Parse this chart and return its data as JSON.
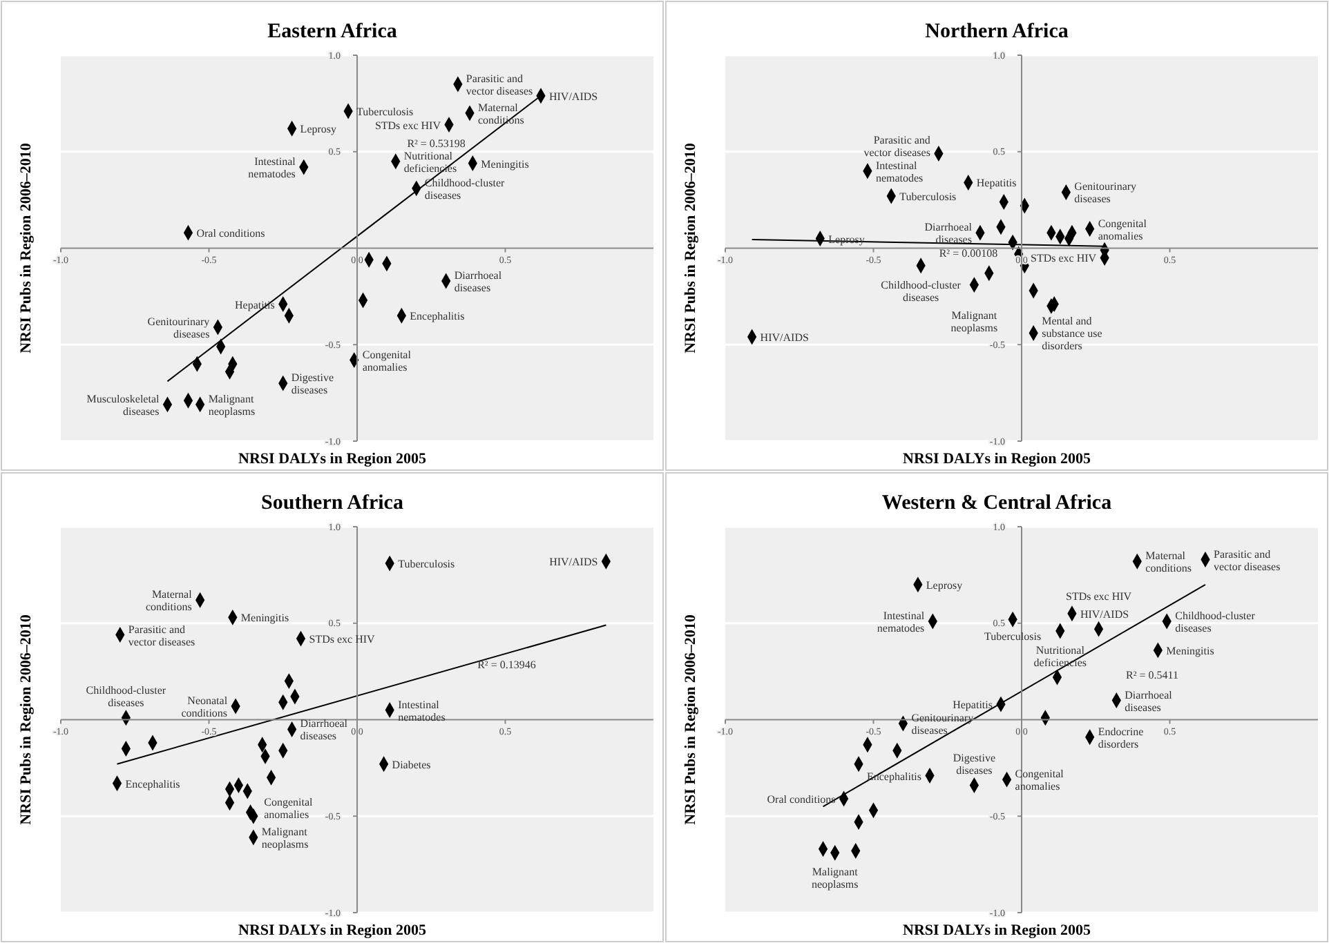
{
  "chart_data": [
    {
      "type": "scatter",
      "title": "Eastern Africa",
      "xlabel": "NRSI DALYs in Region 2005",
      "ylabel": "NRSI Pubs in Region 2006–2010",
      "xlim": [
        -1,
        1
      ],
      "ylim": [
        -1,
        1
      ],
      "xticks": [
        {
          "value": -1,
          "label": "-1.0"
        },
        {
          "value": -0.5,
          "label": "-0.5"
        },
        {
          "value": 0,
          "label": "0.0"
        },
        {
          "value": 0.5,
          "label": "0.5"
        }
      ],
      "yticks": [
        {
          "value": -1,
          "label": "-1.0"
        },
        {
          "value": -0.5,
          "label": "-0.5"
        },
        {
          "value": 0.5,
          "label": "0.5"
        },
        {
          "value": 1,
          "label": "1.0"
        }
      ],
      "grid": "y",
      "series": [
        {
          "type": "scatter",
          "marker": "diamond",
          "color": "#000000",
          "x": [
            0.34,
            0.62,
            0.38,
            0.31,
            -0.03,
            -0.22,
            -0.18,
            0.13,
            0.39,
            0.2,
            -0.57,
            0.04,
            0.1,
            0.3,
            0.02,
            0.15,
            -0.01,
            -0.25,
            -0.23,
            -0.47,
            -0.46,
            -0.54,
            -0.42,
            -0.43,
            -0.25,
            -0.64,
            -0.57,
            -0.53
          ],
          "values": [
            0.85,
            0.79,
            0.7,
            0.64,
            0.71,
            0.62,
            0.42,
            0.45,
            0.44,
            0.31,
            0.08,
            -0.06,
            -0.08,
            -0.17,
            -0.27,
            -0.35,
            -0.58,
            -0.29,
            -0.35,
            -0.41,
            -0.51,
            -0.6,
            -0.6,
            -0.64,
            -0.7,
            -0.81,
            -0.79,
            -0.81
          ]
        },
        {
          "type": "line",
          "marker": "none",
          "color": "#000000",
          "x": [
            -0.64,
            0.62
          ],
          "values": [
            -0.69,
            0.79
          ]
        }
      ],
      "annotations": [
        {
          "text": "Parasitic and vector diseases",
          "x": 0.34,
          "y": 0.85
        },
        {
          "text": "HIV/AIDS",
          "x": 0.62,
          "y": 0.79
        },
        {
          "text": "Maternal conditions",
          "x": 0.38,
          "y": 0.7
        },
        {
          "text": "STDs exc HIV",
          "x": 0.31,
          "y": 0.64
        },
        {
          "text": "Tuberculosis",
          "x": -0.03,
          "y": 0.71
        },
        {
          "text": "Leprosy",
          "x": -0.22,
          "y": 0.62
        },
        {
          "text": "Intestinal nematodes",
          "x": -0.18,
          "y": 0.42
        },
        {
          "text": "Nutritional deficiencies",
          "x": 0.13,
          "y": 0.45
        },
        {
          "text": "Meningitis",
          "x": 0.39,
          "y": 0.44
        },
        {
          "text": "Childhood-cluster diseases",
          "x": 0.2,
          "y": 0.31
        },
        {
          "text": "Oral conditions",
          "x": -0.57,
          "y": 0.08
        },
        {
          "text": "Diarrhoeal diseases",
          "x": 0.3,
          "y": -0.17
        },
        {
          "text": "Encephalitis",
          "x": 0.15,
          "y": -0.35
        },
        {
          "text": "Congenital anomalies",
          "x": -0.01,
          "y": -0.58
        },
        {
          "text": "Hepatitis",
          "x": -0.25,
          "y": -0.29
        },
        {
          "text": "Genitourinary diseases",
          "x": -0.47,
          "y": -0.41
        },
        {
          "text": "Digestive diseases",
          "x": -0.25,
          "y": -0.7
        },
        {
          "text": "Musculoskeletal diseases",
          "x": -0.64,
          "y": -0.81
        },
        {
          "text": "Malignant neoplasms",
          "x": -0.53,
          "y": -0.81
        },
        "R² = 0.53198"
      ]
    },
    {
      "type": "scatter",
      "title": "Northern Africa",
      "xlabel": "NRSI DALYs in Region 2005",
      "ylabel": "NRSI Pubs in Region 2006–2010",
      "xlim": [
        -1,
        1
      ],
      "ylim": [
        -1,
        1
      ],
      "xticks": [
        {
          "value": -1,
          "label": "-1.0"
        },
        {
          "value": -0.5,
          "label": "-0.5"
        },
        {
          "value": 0,
          "label": "0.0"
        },
        {
          "value": 0.5,
          "label": "0.5"
        }
      ],
      "yticks": [
        {
          "value": -1,
          "label": "-1.0"
        },
        {
          "value": -0.5,
          "label": "-0.5"
        },
        {
          "value": 0.5,
          "label": "0.5"
        },
        {
          "value": 1,
          "label": "1.0"
        }
      ],
      "grid": "y",
      "series": [
        {
          "type": "scatter",
          "marker": "diamond",
          "color": "#000000",
          "x": [
            -0.28,
            -0.52,
            -0.18,
            -0.44,
            -0.06,
            0.01,
            0.15,
            -0.14,
            -0.07,
            -0.68,
            -0.91,
            -0.03,
            -0.01,
            0.01,
            -0.34,
            -0.11,
            -0.16,
            0.04,
            0.1,
            0.11,
            0.04,
            0.1,
            0.13,
            0.17,
            0.16,
            0.23,
            0.28,
            0.28
          ],
          "values": [
            0.49,
            0.4,
            0.34,
            0.27,
            0.24,
            0.22,
            0.29,
            0.08,
            0.11,
            0.05,
            -0.46,
            0.03,
            -0.03,
            -0.09,
            -0.09,
            -0.13,
            -0.19,
            -0.22,
            -0.3,
            -0.29,
            -0.44,
            0.08,
            0.06,
            0.08,
            0.05,
            0.1,
            -0.01,
            -0.05
          ]
        },
        {
          "type": "line",
          "marker": "none",
          "color": "#000000",
          "x": [
            -0.91,
            0.28
          ],
          "values": [
            0.045,
            0.01
          ]
        }
      ],
      "annotations": [
        {
          "text": "Parasitic and vector diseases",
          "x": -0.28,
          "y": 0.49
        },
        {
          "text": "Intestinal nematodes",
          "x": -0.52,
          "y": 0.4
        },
        {
          "text": "Hepatitis",
          "x": -0.18,
          "y": 0.34
        },
        {
          "text": "Tuberculosis",
          "x": -0.44,
          "y": 0.27
        },
        {
          "text": "Genitourinary diseases",
          "x": 0.15,
          "y": 0.29
        },
        {
          "text": "Diarrhoeal diseases",
          "x": -0.14,
          "y": 0.08
        },
        {
          "text": "Leprosy",
          "x": -0.68,
          "y": 0.05
        },
        {
          "text": "HIV/AIDS",
          "x": -0.91,
          "y": -0.46
        },
        {
          "text": "Childhood-cluster diseases",
          "x": -0.34,
          "y": -0.09
        },
        {
          "text": "Malignant neoplasms",
          "x": -0.16,
          "y": -0.19
        },
        {
          "text": "Mental and substance use disorders",
          "x": 0.04,
          "y": -0.44
        },
        {
          "text": "Congenital anomalies",
          "x": 0.23,
          "y": 0.1
        },
        {
          "text": "STDs exc HIV",
          "x": 0.28,
          "y": -0.05
        },
        "R² = 0.00108"
      ]
    },
    {
      "type": "scatter",
      "title": "Southern Africa",
      "xlabel": "NRSI DALYs in Region 2005",
      "ylabel": "NRSI Pubs in Region 2006–2010",
      "xlim": [
        -1,
        1
      ],
      "ylim": [
        -1,
        1
      ],
      "xticks": [
        {
          "value": -1,
          "label": "-1.0"
        },
        {
          "value": -0.5,
          "label": "-0.5"
        },
        {
          "value": 0,
          "label": "0.0"
        },
        {
          "value": 0.5,
          "label": "0.5"
        }
      ],
      "yticks": [
        {
          "value": -1,
          "label": "-1.0"
        },
        {
          "value": -0.5,
          "label": "-0.5"
        },
        {
          "value": 0.5,
          "label": "0.5"
        },
        {
          "value": 1,
          "label": "1.0"
        }
      ],
      "grid": "y",
      "series": [
        {
          "type": "scatter",
          "marker": "diamond",
          "color": "#000000",
          "x": [
            0.11,
            0.84,
            -0.53,
            -0.42,
            -0.8,
            -0.19,
            -0.23,
            -0.21,
            -0.25,
            -0.41,
            -0.78,
            0.11,
            -0.22,
            -0.78,
            -0.69,
            -0.32,
            -0.31,
            -0.25,
            -0.29,
            0.09,
            -0.81,
            -0.43,
            -0.4,
            -0.37,
            -0.43,
            -0.36,
            -0.35,
            -0.35
          ],
          "values": [
            0.81,
            0.82,
            0.62,
            0.53,
            0.44,
            0.42,
            0.2,
            0.12,
            0.09,
            0.07,
            0.01,
            0.05,
            -0.05,
            -0.15,
            -0.12,
            -0.13,
            -0.19,
            -0.16,
            -0.3,
            -0.23,
            -0.33,
            -0.36,
            -0.34,
            -0.37,
            -0.43,
            -0.48,
            -0.5,
            -0.61
          ]
        },
        {
          "type": "line",
          "marker": "none",
          "color": "#000000",
          "x": [
            -0.81,
            0.84
          ],
          "values": [
            -0.23,
            0.49
          ]
        }
      ],
      "annotations": [
        {
          "text": "Tuberculosis",
          "x": 0.11,
          "y": 0.81
        },
        {
          "text": "HIV/AIDS",
          "x": 0.84,
          "y": 0.82
        },
        {
          "text": "Maternal conditions",
          "x": -0.53,
          "y": 0.62
        },
        {
          "text": "Meningitis",
          "x": -0.42,
          "y": 0.53
        },
        {
          "text": "Parasitic and vector diseases",
          "x": -0.8,
          "y": 0.44
        },
        {
          "text": "STDs exc HIV",
          "x": -0.19,
          "y": 0.42
        },
        {
          "text": "Neonatal conditions",
          "x": -0.41,
          "y": 0.07
        },
        {
          "text": "Childhood-cluster diseases",
          "x": -0.78,
          "y": 0.01
        },
        {
          "text": "Intestinal nematodes",
          "x": 0.11,
          "y": 0.05
        },
        {
          "text": "Diarrhoeal diseases",
          "x": -0.22,
          "y": -0.05
        },
        {
          "text": "Diabetes",
          "x": 0.09,
          "y": -0.23
        },
        {
          "text": "Encephalitis",
          "x": -0.81,
          "y": -0.33
        },
        {
          "text": "Congenital anomalies",
          "x": -0.37,
          "y": -0.37
        },
        {
          "text": "Malignant neoplasms",
          "x": -0.35,
          "y": -0.61
        },
        "R² = 0.13946"
      ]
    },
    {
      "type": "scatter",
      "title": "Western & Central Africa",
      "xlabel": "NRSI DALYs in Region 2005",
      "ylabel": "NRSI Pubs in Region 2006–2010",
      "xlim": [
        -1,
        1
      ],
      "ylim": [
        -1,
        1
      ],
      "xticks": [
        {
          "value": -1,
          "label": "-1.0"
        },
        {
          "value": -0.5,
          "label": "-0.5"
        },
        {
          "value": 0,
          "label": "0.0"
        },
        {
          "value": 0.5,
          "label": "0.5"
        }
      ],
      "yticks": [
        {
          "value": -1,
          "label": "-1.0"
        },
        {
          "value": -0.5,
          "label": "-0.5"
        },
        {
          "value": 0.5,
          "label": "0.5"
        },
        {
          "value": 1,
          "label": "1.0"
        }
      ],
      "grid": "y",
      "series": [
        {
          "type": "scatter",
          "marker": "diamond",
          "color": "#000000",
          "x": [
            0.62,
            0.39,
            -0.35,
            -0.03,
            -0.3,
            0.17,
            0.13,
            0.26,
            0.49,
            0.46,
            0.12,
            0.32,
            -0.07,
            0.08,
            0.23,
            -0.4,
            -0.52,
            -0.42,
            -0.55,
            -0.31,
            -0.16,
            -0.05,
            -0.6,
            -0.5,
            -0.55,
            -0.67,
            -0.63,
            -0.56
          ],
          "values": [
            0.83,
            0.82,
            0.7,
            0.52,
            0.51,
            0.55,
            0.46,
            0.47,
            0.51,
            0.36,
            0.22,
            0.1,
            0.08,
            0.01,
            -0.09,
            -0.02,
            -0.13,
            -0.16,
            -0.23,
            -0.29,
            -0.34,
            -0.31,
            -0.41,
            -0.47,
            -0.53,
            -0.67,
            -0.69,
            -0.68
          ]
        },
        {
          "type": "line",
          "marker": "none",
          "color": "#000000",
          "x": [
            -0.67,
            0.62
          ],
          "values": [
            -0.45,
            0.7
          ]
        }
      ],
      "annotations": [
        {
          "text": "Parasitic and vector diseases",
          "x": 0.62,
          "y": 0.83
        },
        {
          "text": "Maternal conditions",
          "x": 0.39,
          "y": 0.82
        },
        {
          "text": "Leprosy",
          "x": -0.35,
          "y": 0.7
        },
        {
          "text": "Tuberculosis",
          "x": -0.03,
          "y": 0.52
        },
        {
          "text": "Intestinal nematodes",
          "x": -0.3,
          "y": 0.51
        },
        {
          "text": "HIV/AIDS",
          "x": 0.17,
          "y": 0.55
        },
        {
          "text": "Nutritional deficiencies",
          "x": 0.13,
          "y": 0.46
        },
        {
          "text": "STDs exc HIV",
          "x": 0.26,
          "y": 0.47
        },
        {
          "text": "Childhood-cluster diseases",
          "x": 0.49,
          "y": 0.51
        },
        {
          "text": "Meningitis",
          "x": 0.46,
          "y": 0.36
        },
        {
          "text": "Diarrhoeal diseases",
          "x": 0.32,
          "y": 0.1
        },
        {
          "text": "Hepatitis",
          "x": -0.07,
          "y": 0.08
        },
        {
          "text": "Endocrine disorders",
          "x": 0.23,
          "y": -0.09
        },
        {
          "text": "Genitourinary diseases",
          "x": -0.4,
          "y": -0.02
        },
        {
          "text": "Encephalitis",
          "x": -0.31,
          "y": -0.29
        },
        {
          "text": "Digestive diseases",
          "x": -0.16,
          "y": -0.34
        },
        {
          "text": "Congenital anomalies",
          "x": -0.05,
          "y": -0.31
        },
        {
          "text": "Oral conditions",
          "x": -0.6,
          "y": -0.41
        },
        {
          "text": "Malignant neoplasms",
          "x": -0.63,
          "y": -0.69
        },
        "R² = 0.5411"
      ]
    }
  ]
}
